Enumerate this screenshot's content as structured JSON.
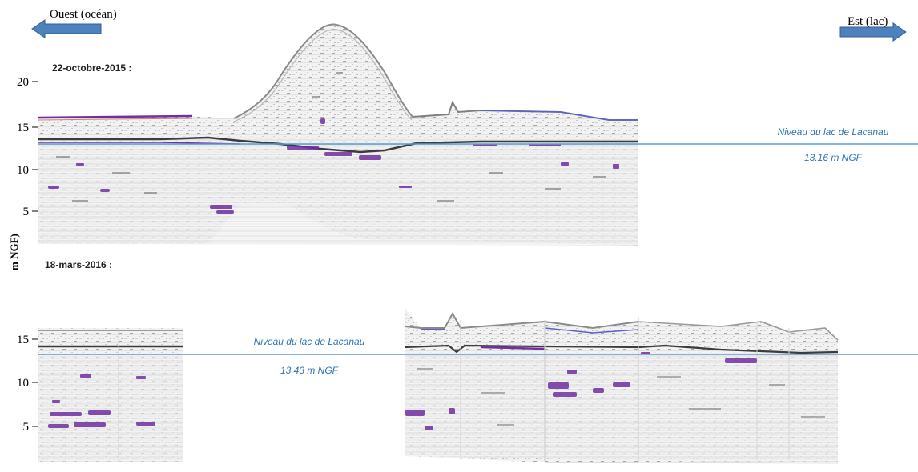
{
  "directions": {
    "west": "Ouest (océan)",
    "east": "Est (lac)"
  },
  "axis_label": "m NGF)",
  "panels": [
    {
      "date_label": "22-octobre-2015  :",
      "y_ticks": [
        "20",
        "15",
        "10",
        "5"
      ],
      "lake_level": {
        "label": "Niveau du lac de Lacanau",
        "value": "13.16 m NGF"
      }
    },
    {
      "date_label": "18-mars-2016  :",
      "y_ticks": [
        "15",
        "10",
        "5"
      ],
      "lake_level": {
        "label": "Niveau du lac de Lacanau",
        "value": "13.43 m NGF"
      }
    }
  ],
  "colors": {
    "arrow": "#4f81bd",
    "lake_line": "#5b9bd5",
    "lake_text": "#2e75b6",
    "reflector_purple": "#7030a0",
    "reflector_dark": "#404040"
  }
}
